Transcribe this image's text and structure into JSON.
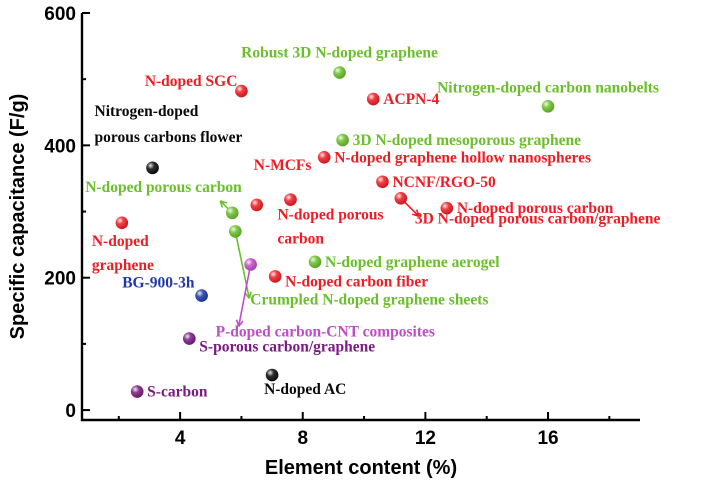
{
  "colors": {
    "red": "#ee1c24",
    "green": "#6abf2b",
    "black": "#0a0a0a",
    "blue": "#1f3aa6",
    "purple": "#7a1a82",
    "magenta": "#c14cc7"
  },
  "chart_data": {
    "type": "scatter",
    "xlabel": "Element content (%)",
    "ylabel": "Specific capacitance (F/g)",
    "xlim": [
      0.8,
      19.0
    ],
    "ylim": [
      -15,
      600
    ],
    "xticks": [
      4,
      8,
      12,
      16
    ],
    "yticks": [
      0,
      200,
      400,
      600
    ],
    "xtick_labels": [
      "4",
      "8",
      "12",
      "16"
    ],
    "ytick_labels": [
      "0",
      "200",
      "400",
      "600"
    ],
    "grid": false,
    "points": [
      {
        "x": 6.0,
        "y": 482,
        "color": "red",
        "label": "N-doped SGC"
      },
      {
        "x": 9.2,
        "y": 510,
        "color": "green",
        "label": "Robust 3D N-doped graphene"
      },
      {
        "x": 10.3,
        "y": 470,
        "color": "red",
        "label": "ACPN-4"
      },
      {
        "x": 16.0,
        "y": 459,
        "color": "green",
        "label": "Nitrogen-doped carbon nanobelts"
      },
      {
        "x": 9.3,
        "y": 408,
        "color": "green",
        "label": "3D N-doped mesoporous graphene"
      },
      {
        "x": 3.1,
        "y": 366,
        "color": "black",
        "label": "Nitrogen-doped porous carbons flower",
        "label_lines": [
          "Nitrogen-doped",
          "porous carbons flower"
        ]
      },
      {
        "x": 8.7,
        "y": 382,
        "color": "red",
        "label": "N-doped graphene hollow nanospheres"
      },
      {
        "x": 10.6,
        "y": 345,
        "color": "red",
        "label": "NCNF/RGO-50"
      },
      {
        "x": 6.5,
        "y": 310,
        "color": "red",
        "label": "N-MCFs"
      },
      {
        "x": 7.6,
        "y": 318,
        "color": "red",
        "label": "N-doped porous carbon",
        "label_lines": [
          "N-doped porous",
          "carbon"
        ]
      },
      {
        "x": 5.7,
        "y": 298,
        "color": "green",
        "label": "N-doped porous carbon"
      },
      {
        "x": 12.7,
        "y": 305,
        "color": "red",
        "label": "N-doped porous carbon"
      },
      {
        "x": 11.2,
        "y": 320,
        "color": "red",
        "label": "3D N-doped porous carbon/graphene"
      },
      {
        "x": 2.1,
        "y": 283,
        "color": "red",
        "label": "N-doped graphene",
        "label_lines": [
          "N-doped",
          "graphene"
        ]
      },
      {
        "x": 5.8,
        "y": 270,
        "color": "green",
        "label": "Crumpled N-doped graphene sheets"
      },
      {
        "x": 8.4,
        "y": 224,
        "color": "green",
        "label": "N-doped graphene aerogel"
      },
      {
        "x": 6.3,
        "y": 220,
        "color": "magenta",
        "label": "P-doped carbon-CNT composites"
      },
      {
        "x": 7.1,
        "y": 202,
        "color": "red",
        "label": "N-doped carbon fiber"
      },
      {
        "x": 4.7,
        "y": 173,
        "color": "blue",
        "label": "BG-900-3h"
      },
      {
        "x": 4.3,
        "y": 108,
        "color": "purple",
        "label": "S-porous carbon/graphene"
      },
      {
        "x": 7.0,
        "y": 53,
        "color": "black",
        "label": "N-doped AC"
      },
      {
        "x": 2.6,
        "y": 28,
        "color": "purple",
        "label": "S-carbon"
      }
    ]
  }
}
